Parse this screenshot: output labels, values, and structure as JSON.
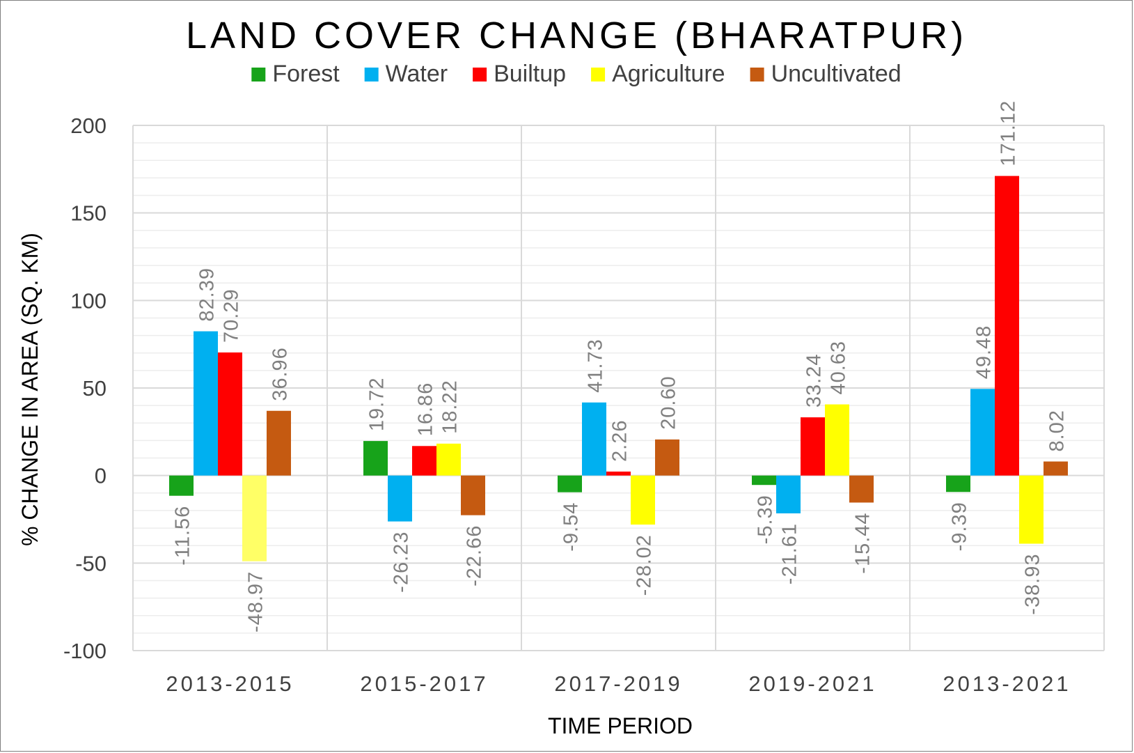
{
  "chart_data": {
    "type": "bar",
    "title": "LAND COVER CHANGE (BHARATPUR)",
    "xlabel": "TIME PERIOD",
    "ylabel": "% CHANGE IN AREA (SQ. KM)",
    "ylim": [
      -100,
      200
    ],
    "yticks": [
      200,
      150,
      100,
      50,
      0,
      -50,
      -100
    ],
    "grid": true,
    "legend_position": "top",
    "categories": [
      "2013-2015",
      "2015-2017",
      "2017-2019",
      "2019-2021",
      "2013-2021"
    ],
    "series": [
      {
        "name": "Forest",
        "color": "#17a31a",
        "values": [
          -11.56,
          19.72,
          -9.54,
          -5.39,
          -9.39
        ],
        "labels": [
          "-11.56",
          "19.72",
          "-9.54",
          "-5.39",
          "-9.39"
        ]
      },
      {
        "name": "Water",
        "color": "#00b0f0",
        "values": [
          82.39,
          -26.23,
          41.73,
          -21.61,
          49.48
        ],
        "labels": [
          "82.39",
          "-26.23",
          "41.73",
          "-21.61",
          "49.48"
        ]
      },
      {
        "name": "Builtup",
        "color": "#ff0000",
        "values": [
          70.29,
          16.86,
          2.26,
          33.24,
          171.12
        ],
        "labels": [
          "70.29",
          "16.86",
          "2.26",
          "33.24",
          "171.12"
        ]
      },
      {
        "name": "Agriculture",
        "color": "#ffff00",
        "values": [
          -48.97,
          18.22,
          -28.02,
          40.63,
          -38.93
        ],
        "labels": [
          "-48.97",
          "18.22",
          "-28.02",
          "40.63",
          "-38.93"
        ]
      },
      {
        "name": "Uncultivated",
        "color": "#c55a11",
        "values": [
          36.96,
          -22.66,
          20.6,
          -15.44,
          8.02
        ],
        "labels": [
          "36.96",
          "-22.66",
          "20.60",
          "-15.44",
          "8.02"
        ]
      }
    ]
  }
}
